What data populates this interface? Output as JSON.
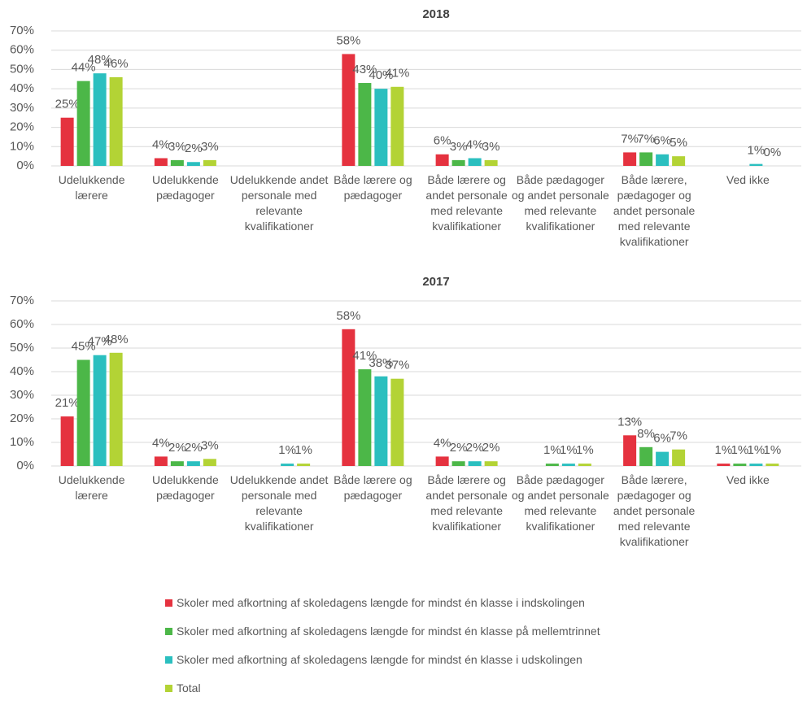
{
  "chart_data": [
    {
      "type": "bar",
      "title": "2018",
      "categories": [
        "Udelukkende lærere",
        "Udelukkende pædagoger",
        "Udelukkende andet personale med relevante kvalifikationer",
        "Både lærere og pædagoger",
        "Både lærere og andet personale med relevante kvalifikationer",
        "Både pædagoger og andet personale med relevante kvalifikationer",
        "Både lærere, pædagoger og andet personale med relevante kvalifikationer",
        "Ved ikke"
      ],
      "series": [
        {
          "name": "Skoler med afkortning af skoledagens længde for mindst én klasse i indskolingen",
          "color": "#e5323f",
          "values": [
            25,
            4,
            null,
            58,
            6,
            null,
            7,
            null
          ],
          "value_labels": [
            "25%",
            "4%",
            null,
            "58%",
            "6%",
            null,
            "7%",
            null
          ]
        },
        {
          "name": "Skoler med afkortning af skoledagens længde for mindst én klasse på mellemtrinnet",
          "color": "#4cb748",
          "values": [
            44,
            3,
            null,
            43,
            3,
            null,
            7,
            null
          ],
          "value_labels": [
            "44%",
            "3%",
            null,
            "43%",
            "3%",
            null,
            "7%",
            null
          ]
        },
        {
          "name": "Skoler med afkortning af skoledagens længde for mindst én klasse i udskolingen",
          "color": "#2bbfbf",
          "values": [
            48,
            2,
            null,
            40,
            4,
            null,
            6,
            1
          ],
          "value_labels": [
            "48%",
            "2%",
            null,
            "40%",
            "4%",
            null,
            "6%",
            "1%"
          ]
        },
        {
          "name": "Total",
          "color": "#b3d335",
          "values": [
            46,
            3,
            null,
            41,
            3,
            null,
            5,
            0
          ],
          "value_labels": [
            "46%",
            "3%",
            null,
            "41%",
            "3%",
            null,
            "5%",
            "0%"
          ]
        }
      ],
      "ylim": [
        0,
        70
      ],
      "yticks": [
        {
          "value": 0,
          "label": "0%"
        },
        {
          "value": 10,
          "label": "10%"
        },
        {
          "value": 20,
          "label": "20%"
        },
        {
          "value": 30,
          "label": "30%"
        },
        {
          "value": 40,
          "label": "40%"
        },
        {
          "value": 50,
          "label": "50%"
        },
        {
          "value": 60,
          "label": "60%"
        },
        {
          "value": 70,
          "label": "70%"
        }
      ],
      "grid": true,
      "legend": "bottom"
    },
    {
      "type": "bar",
      "title": "2017",
      "categories": [
        "Udelukkende lærere",
        "Udelukkende pædagoger",
        "Udelukkende andet personale med relevante kvalifikationer",
        "Både lærere og pædagoger",
        "Både lærere og andet personale med relevante kvalifikationer",
        "Både pædagoger og andet personale med relevante kvalifikationer",
        "Både lærere, pædagoger og andet personale med relevante kvalifikationer",
        "Ved ikke"
      ],
      "series": [
        {
          "color": "#e5323f",
          "values": [
            21,
            4,
            null,
            58,
            4,
            null,
            13,
            1
          ],
          "value_labels": [
            "21%",
            "4%",
            null,
            "58%",
            "4%",
            null,
            "13%",
            "1%"
          ]
        },
        {
          "color": "#4cb748",
          "values": [
            45,
            2,
            null,
            41,
            2,
            1,
            8,
            1
          ],
          "value_labels": [
            "45%",
            "2%",
            null,
            "41%",
            "2%",
            "1%",
            "8%",
            "1%"
          ]
        },
        {
          "color": "#2bbfbf",
          "values": [
            47,
            2,
            1,
            38,
            2,
            1,
            6,
            1
          ],
          "value_labels": [
            "47%",
            "2%",
            "1%",
            "38%",
            "2%",
            "1%",
            "6%",
            "1%"
          ]
        },
        {
          "color": "#b3d335",
          "values": [
            48,
            3,
            1,
            37,
            2,
            1,
            7,
            1
          ],
          "value_labels": [
            "48%",
            "3%",
            "1%",
            "37%",
            "2%",
            "1%",
            "7%",
            "1%"
          ]
        }
      ],
      "ylim": [
        0,
        70
      ],
      "yticks": [
        {
          "value": 0,
          "label": "0%"
        },
        {
          "value": 10,
          "label": "10%"
        },
        {
          "value": 20,
          "label": "20%"
        },
        {
          "value": 30,
          "label": "30%"
        },
        {
          "value": 40,
          "label": "40%"
        },
        {
          "value": 50,
          "label": "50%"
        },
        {
          "value": 60,
          "label": "60%"
        },
        {
          "value": 70,
          "label": "70%"
        }
      ],
      "grid": true
    }
  ]
}
